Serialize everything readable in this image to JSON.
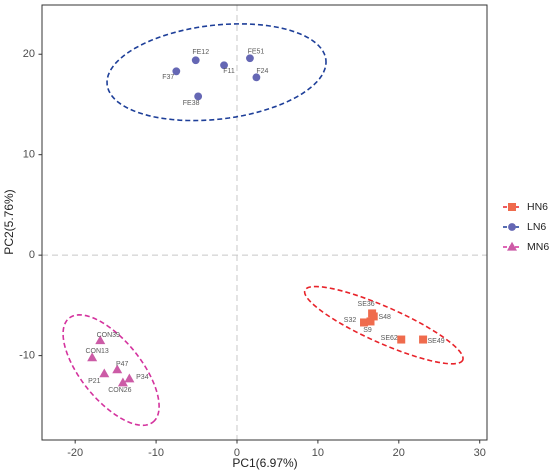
{
  "chart_data": {
    "type": "scatter",
    "xlabel": "PC1(6.97%)",
    "ylabel": "PC2(5.76%)",
    "xlim": [
      -24.1,
      30.9
    ],
    "ylim": [
      -18.4,
      24.9
    ],
    "xticks": [
      -20,
      -10,
      0,
      10,
      20,
      30
    ],
    "yticks": [
      -10,
      0,
      10,
      20
    ],
    "grid": false,
    "legend": "right",
    "reference_lines": {
      "x": 0,
      "y": 0,
      "style": "dashed",
      "color": "#C8C8C8"
    },
    "series": [
      {
        "name": "HN6",
        "marker": "square",
        "color": "#EF6B4D",
        "ellipse_color": "#E8232A",
        "points": [
          {
            "label": "SE36",
            "x": 16.7,
            "y": -5.8
          },
          {
            "label": "S48",
            "x": 16.9,
            "y": -6.1
          },
          {
            "label": "S32",
            "x": 15.7,
            "y": -6.7
          },
          {
            "label": "S9",
            "x": 16.5,
            "y": -6.6
          },
          {
            "label": "SE62",
            "x": 20.3,
            "y": -8.4
          },
          {
            "label": "SE49",
            "x": 23.0,
            "y": -8.4
          }
        ],
        "ellipse": {
          "center": [
            18.15,
            -6.97
          ],
          "axis_a": [
            9.75,
            -3.48
          ],
          "axis_b": [
            -0.9,
            -1.64
          ]
        }
      },
      {
        "name": "LN6",
        "marker": "circle",
        "color": "#6567B4",
        "ellipse_color": "#1E3F99",
        "points": [
          {
            "label": "FE12",
            "x": -5.1,
            "y": 19.4
          },
          {
            "label": "FE51",
            "x": 1.6,
            "y": 19.6
          },
          {
            "label": "F37",
            "x": -7.5,
            "y": 18.3
          },
          {
            "label": "F11",
            "x": -1.6,
            "y": 18.9
          },
          {
            "label": "F24",
            "x": 2.4,
            "y": 17.7
          },
          {
            "label": "FE38",
            "x": -4.8,
            "y": 15.8
          }
        ],
        "ellipse": {
          "center": [
            -2.53,
            18.21
          ],
          "axis_a": [
            13.52,
            1.24
          ],
          "axis_b": [
            0.65,
            -4.65
          ]
        }
      },
      {
        "name": "MN6",
        "marker": "triangle",
        "color": "#CC5BA6",
        "ellipse_color": "#D4339E",
        "points": [
          {
            "label": "CON39",
            "x": -16.9,
            "y": -8.5
          },
          {
            "label": "CON13",
            "x": -17.9,
            "y": -10.2
          },
          {
            "label": "P47",
            "x": -14.8,
            "y": -11.4
          },
          {
            "label": "P21",
            "x": -16.4,
            "y": -11.8
          },
          {
            "label": "P34",
            "x": -13.3,
            "y": -12.3
          },
          {
            "label": "CON26",
            "x": -14.1,
            "y": -12.7
          }
        ],
        "ellipse": {
          "center": [
            -15.56,
            -11.44
          ],
          "axis_a": [
            5.19,
            -5.17
          ],
          "axis_b": [
            2.88,
            1.87
          ]
        }
      }
    ]
  }
}
